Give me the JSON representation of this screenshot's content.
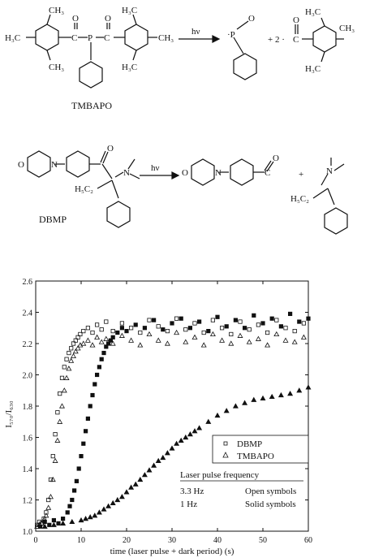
{
  "scheme": {
    "reaction1": {
      "name": "TMBAPO",
      "arrow_label": "hν",
      "coefficient": "+ 2 ·",
      "labels": {
        "ch3_left": "H₃C",
        "ch3_top": "CH₃",
        "ch3_bottom": "CH₃",
        "h3c_top_right": "H₃C",
        "h3c_bottom_right": "H₃C",
        "ch3_right": "CH₃",
        "o1": "O",
        "o2": "O",
        "p": "P",
        "c1": "C",
        "c2": "C",
        "p_radical": "·P",
        "p_o": "O",
        "prod_c": "C",
        "prod_o": "O",
        "prod_h3c_top": "H₃C",
        "prod_ch3_top": "CH₃",
        "prod_ch3_right": "CH₃",
        "prod_h3c_bottom": "H₃C"
      }
    },
    "reaction2": {
      "name": "DBMP",
      "arrow_label": "hν",
      "plus": "+",
      "labels": {
        "o_ring": "O",
        "n_ring": "N",
        "carbonyl_o": "O",
        "amine_n": "N",
        "ethyl": "H₅C₂",
        "prod_o_ring": "O",
        "prod_n_ring": "N",
        "prod_c": "C",
        "prod_o": "O",
        "frag_n": "N",
        "frag_ethyl": "H₅C₂"
      }
    }
  },
  "chart_data": {
    "type": "scatter",
    "xlabel": "time (laser pulse + dark period) (s)",
    "ylabel": "I₅₇₀/I₆₃₀",
    "xlim": [
      0,
      60
    ],
    "ylim": [
      1.0,
      2.6
    ],
    "x_ticks": [
      "0",
      "10",
      "20",
      "30",
      "40",
      "50",
      "60"
    ],
    "y_ticks": [
      "1.0",
      "1.2",
      "1.4",
      "1.6",
      "1.8",
      "2.0",
      "2.2",
      "2.4",
      "2.6"
    ],
    "legend": {
      "entries": [
        {
          "marker": "square",
          "label": "DBMP"
        },
        {
          "marker": "triangle",
          "label": "TMBAPO"
        }
      ],
      "table_title": "Laser pulse frequency",
      "rows": [
        {
          "freq": "3.3 Hz",
          "symbols": "Open symbols"
        },
        {
          "freq": "1 Hz",
          "symbols": "Solid symbols"
        }
      ]
    },
    "series": [
      {
        "name": "DBMP",
        "style": "open-square",
        "x": [
          0.3,
          0.8,
          1.3,
          1.8,
          2.3,
          2.8,
          3.3,
          3.8,
          4.3,
          4.8,
          5.3,
          5.8,
          6.3,
          6.8,
          7.3,
          7.8,
          8.3,
          8.8,
          9.3,
          9.8,
          10.5,
          11.5,
          12.5,
          13.5,
          14.5,
          15.5,
          17,
          19,
          21,
          23,
          25,
          27,
          29,
          31,
          33,
          35,
          37,
          39,
          41,
          43,
          45,
          47,
          49,
          51,
          53,
          55,
          57,
          59
        ],
        "y": [
          1.04,
          1.06,
          1.05,
          1.08,
          1.12,
          1.2,
          1.33,
          1.48,
          1.62,
          1.76,
          1.88,
          1.98,
          2.05,
          2.1,
          2.14,
          2.17,
          2.2,
          2.22,
          2.24,
          2.26,
          2.28,
          2.3,
          2.27,
          2.32,
          2.29,
          2.34,
          2.28,
          2.33,
          2.3,
          2.27,
          2.35,
          2.31,
          2.28,
          2.36,
          2.29,
          2.33,
          2.27,
          2.35,
          2.3,
          2.26,
          2.34,
          2.29,
          2.32,
          2.27,
          2.35,
          2.3,
          2.28,
          2.33
        ]
      },
      {
        "name": "TMBAPO",
        "style": "open-triangle",
        "x": [
          0.3,
          0.8,
          1.3,
          1.8,
          2.3,
          2.8,
          3.3,
          3.8,
          4.3,
          4.8,
          5.3,
          5.8,
          6.3,
          6.8,
          7.3,
          7.8,
          8.3,
          8.8,
          9.3,
          9.8,
          10.5,
          11.5,
          12.5,
          13.5,
          14.5,
          15.5,
          17,
          19,
          21,
          23,
          25,
          27,
          29,
          31,
          33,
          35,
          37,
          39,
          41,
          43,
          45,
          47,
          49,
          51,
          53,
          55,
          57,
          59
        ],
        "y": [
          1.03,
          1.04,
          1.05,
          1.07,
          1.1,
          1.15,
          1.22,
          1.33,
          1.45,
          1.58,
          1.7,
          1.8,
          1.9,
          1.98,
          2.04,
          2.09,
          2.12,
          2.15,
          2.17,
          2.19,
          2.2,
          2.22,
          2.19,
          2.24,
          2.21,
          2.23,
          2.2,
          2.25,
          2.22,
          2.19,
          2.26,
          2.22,
          2.2,
          2.27,
          2.21,
          2.24,
          2.19,
          2.26,
          2.22,
          2.2,
          2.25,
          2.21,
          2.23,
          2.19,
          2.26,
          2.22,
          2.21,
          2.24
        ]
      },
      {
        "name": "DBMP",
        "style": "solid-square",
        "x": [
          1,
          2,
          3,
          4,
          5,
          6,
          7,
          7.5,
          8,
          8.5,
          9,
          9.5,
          10,
          10.5,
          11,
          11.5,
          12,
          12.5,
          13,
          13.5,
          14,
          14.5,
          15,
          15.5,
          16,
          16.5,
          17,
          18,
          19,
          20,
          22,
          24,
          26,
          28,
          30,
          32,
          34,
          36,
          38,
          40,
          42,
          44,
          46,
          48,
          50,
          52,
          54,
          56,
          58,
          60
        ],
        "y": [
          1.03,
          1.06,
          1.04,
          1.07,
          1.05,
          1.08,
          1.12,
          1.16,
          1.2,
          1.26,
          1.32,
          1.4,
          1.48,
          1.56,
          1.64,
          1.72,
          1.8,
          1.87,
          1.94,
          2.0,
          2.05,
          2.1,
          2.14,
          2.18,
          2.2,
          2.22,
          2.24,
          2.27,
          2.3,
          2.28,
          2.32,
          2.3,
          2.35,
          2.29,
          2.33,
          2.36,
          2.3,
          2.34,
          2.28,
          2.37,
          2.31,
          2.35,
          2.3,
          2.38,
          2.33,
          2.36,
          2.31,
          2.39,
          2.34,
          2.36
        ]
      },
      {
        "name": "TMBAPO",
        "style": "solid-triangle",
        "x": [
          2,
          4,
          6,
          8,
          10,
          11,
          12,
          13,
          14,
          15,
          16,
          17,
          18,
          19,
          20,
          21,
          22,
          23,
          24,
          25,
          26,
          27,
          28,
          29,
          30,
          31,
          32,
          33,
          34,
          35,
          36,
          38,
          40,
          42,
          44,
          46,
          48,
          50,
          52,
          54,
          56,
          58,
          60
        ],
        "y": [
          1.03,
          1.04,
          1.05,
          1.06,
          1.07,
          1.08,
          1.09,
          1.1,
          1.12,
          1.14,
          1.16,
          1.18,
          1.2,
          1.22,
          1.25,
          1.28,
          1.3,
          1.33,
          1.36,
          1.39,
          1.42,
          1.45,
          1.47,
          1.5,
          1.53,
          1.56,
          1.58,
          1.6,
          1.62,
          1.64,
          1.66,
          1.7,
          1.74,
          1.77,
          1.8,
          1.82,
          1.84,
          1.85,
          1.86,
          1.87,
          1.88,
          1.9,
          1.92
        ]
      }
    ]
  }
}
